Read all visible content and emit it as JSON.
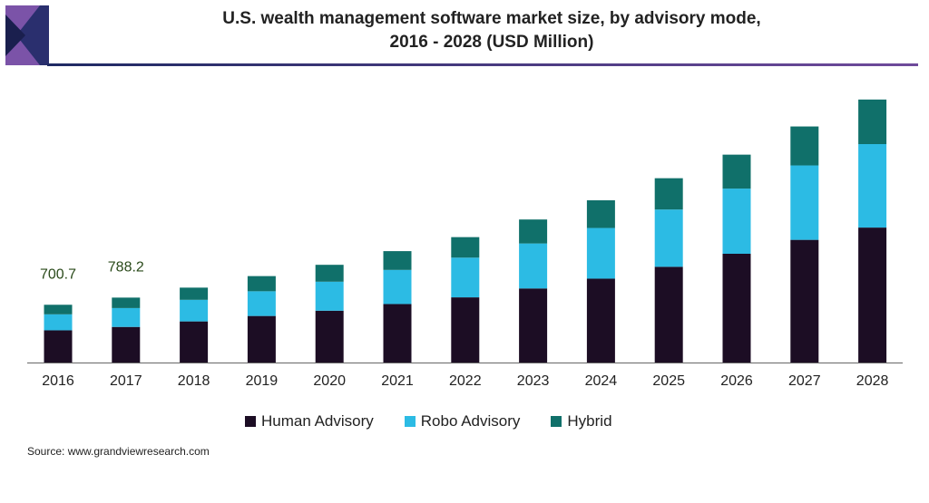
{
  "header": {
    "title_line1": "U.S. wealth management software market size, by advisory mode,",
    "title_line2": "2016 - 2028 (USD Million)"
  },
  "colors": {
    "human": "#1c0d24",
    "robo": "#2cbbe4",
    "hybrid": "#10706a",
    "brand_dark": "#1f2a63",
    "brand_purple": "#6f4a9b",
    "label": "#2a4a1a"
  },
  "chart_data": {
    "type": "bar",
    "stacked": true,
    "title": "U.S. wealth management software market size, by advisory mode, 2016 - 2028 (USD Million)",
    "categories": [
      "2016",
      "2017",
      "2018",
      "2019",
      "2020",
      "2021",
      "2022",
      "2023",
      "2024",
      "2025",
      "2026",
      "2027",
      "2028"
    ],
    "series": [
      {
        "name": "Human Advisory",
        "values": [
          391,
          432,
          499,
          565,
          629,
          710,
          791,
          899,
          1018,
          1162,
          1320,
          1489,
          1638
        ]
      },
      {
        "name": "Robo Advisory",
        "values": [
          194,
          229,
          262,
          300,
          352,
          414,
          482,
          546,
          615,
          695,
          791,
          903,
          1013
        ]
      },
      {
        "name": "Hybrid",
        "values": [
          116,
          127,
          148,
          184,
          205,
          228,
          249,
          291,
          336,
          380,
          412,
          473,
          541
        ]
      }
    ],
    "data_labels": [
      {
        "category": "2016",
        "text": "700.7"
      },
      {
        "category": "2017",
        "text": "788.2"
      }
    ],
    "ylim": [
      0,
      3300
    ],
    "grid": false,
    "legend_position": "bottom",
    "xlabel": "",
    "ylabel": ""
  },
  "legend": {
    "items": [
      {
        "label": "Human Advisory"
      },
      {
        "label": "Robo Advisory"
      },
      {
        "label": "Hybrid"
      }
    ]
  },
  "source": "Source: www.grandviewresearch.com"
}
